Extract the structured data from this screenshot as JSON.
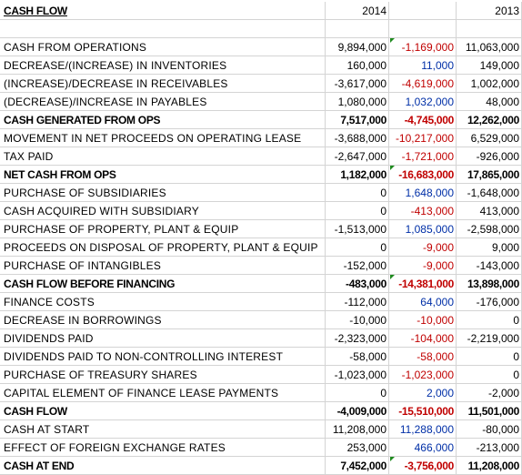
{
  "header": {
    "label": "CASH FLOW",
    "year1": "2014",
    "year2": "2013"
  },
  "rows": [
    {
      "label": "CASH FROM OPERATIONS",
      "v2014": "9,894,000",
      "change": "-1,169,000",
      "change_sign": "neg",
      "v2013": "11,063,000",
      "bold": false,
      "flag": true
    },
    {
      "label": "DECREASE/(INCREASE) IN INVENTORIES",
      "v2014": "160,000",
      "change": "11,000",
      "change_sign": "pos",
      "v2013": "149,000",
      "bold": false,
      "flag": false
    },
    {
      "label": "(INCREASE)/DECREASE IN RECEIVABLES",
      "v2014": "-3,617,000",
      "change": "-4,619,000",
      "change_sign": "neg",
      "v2013": "1,002,000",
      "bold": false,
      "flag": false
    },
    {
      "label": "(DECREASE)/INCREASE IN PAYABLES",
      "v2014": "1,080,000",
      "change": "1,032,000",
      "change_sign": "pos",
      "v2013": "48,000",
      "bold": false,
      "flag": false
    },
    {
      "label": "CASH GENERATED FROM OPS",
      "v2014": "7,517,000",
      "change": "-4,745,000",
      "change_sign": "neg",
      "v2013": "12,262,000",
      "bold": true,
      "flag": false
    },
    {
      "label": "MOVEMENT IN NET PROCEEDS ON OPERATING LEASE",
      "v2014": "-3,688,000",
      "change": "-10,217,000",
      "change_sign": "neg",
      "v2013": "6,529,000",
      "bold": false,
      "flag": false
    },
    {
      "label": "TAX PAID",
      "v2014": "-2,647,000",
      "change": "-1,721,000",
      "change_sign": "neg",
      "v2013": "-926,000",
      "bold": false,
      "flag": false
    },
    {
      "label": "NET CASH FROM OPS",
      "v2014": "1,182,000",
      "change": "-16,683,000",
      "change_sign": "neg",
      "v2013": "17,865,000",
      "bold": true,
      "flag": true
    },
    {
      "label": "PURCHASE OF SUBSIDIARIES",
      "v2014": "0",
      "change": "1,648,000",
      "change_sign": "pos",
      "v2013": "-1,648,000",
      "bold": false,
      "flag": false
    },
    {
      "label": "CASH ACQUIRED WITH SUBSIDIARY",
      "v2014": "0",
      "change": "-413,000",
      "change_sign": "neg",
      "v2013": "413,000",
      "bold": false,
      "flag": false
    },
    {
      "label": "PURCHASE OF PROPERTY, PLANT & EQUIP",
      "v2014": "-1,513,000",
      "change": "1,085,000",
      "change_sign": "pos",
      "v2013": "-2,598,000",
      "bold": false,
      "flag": false
    },
    {
      "label": "PROCEEDS ON DISPOSAL OF PROPERTY, PLANT & EQUIP",
      "v2014": "0",
      "change": "-9,000",
      "change_sign": "neg",
      "v2013": "9,000",
      "bold": false,
      "flag": false
    },
    {
      "label": "PURCHASE OF INTANGIBLES",
      "v2014": "-152,000",
      "change": "-9,000",
      "change_sign": "neg",
      "v2013": "-143,000",
      "bold": false,
      "flag": false
    },
    {
      "label": "CASH FLOW BEFORE FINANCING",
      "v2014": "-483,000",
      "change": "-14,381,000",
      "change_sign": "neg",
      "v2013": "13,898,000",
      "bold": true,
      "flag": true
    },
    {
      "label": "FINANCE COSTS",
      "v2014": "-112,000",
      "change": "64,000",
      "change_sign": "pos",
      "v2013": "-176,000",
      "bold": false,
      "flag": false
    },
    {
      "label": "DECREASE IN BORROWINGS",
      "v2014": "-10,000",
      "change": "-10,000",
      "change_sign": "neg",
      "v2013": "0",
      "bold": false,
      "flag": false
    },
    {
      "label": "DIVIDENDS PAID",
      "v2014": "-2,323,000",
      "change": "-104,000",
      "change_sign": "neg",
      "v2013": "-2,219,000",
      "bold": false,
      "flag": false
    },
    {
      "label": "DIVIDENDS PAID TO NON-CONTROLLING INTEREST",
      "v2014": "-58,000",
      "change": "-58,000",
      "change_sign": "neg",
      "v2013": "0",
      "bold": false,
      "flag": false
    },
    {
      "label": "PURCHASE OF TREASURY SHARES",
      "v2014": "-1,023,000",
      "change": "-1,023,000",
      "change_sign": "neg",
      "v2013": "0",
      "bold": false,
      "flag": false
    },
    {
      "label": "CAPITAL ELEMENT OF FINANCE LEASE PAYMENTS",
      "v2014": "0",
      "change": "2,000",
      "change_sign": "pos",
      "v2013": "-2,000",
      "bold": false,
      "flag": false
    },
    {
      "label": "CASH FLOW",
      "v2014": "-4,009,000",
      "change": "-15,510,000",
      "change_sign": "neg",
      "v2013": "11,501,000",
      "bold": true,
      "flag": false
    },
    {
      "label": "CASH AT START",
      "v2014": "11,208,000",
      "change": "11,288,000",
      "change_sign": "pos",
      "v2013": "-80,000",
      "bold": false,
      "flag": false
    },
    {
      "label": "EFFECT OF FOREIGN EXCHANGE RATES",
      "v2014": "253,000",
      "change": "466,000",
      "change_sign": "pos",
      "v2013": "-213,000",
      "bold": false,
      "flag": false
    },
    {
      "label": "CASH AT END",
      "v2014": "7,452,000",
      "change": "-3,756,000",
      "change_sign": "neg",
      "v2013": "11,208,000",
      "bold": true,
      "flag": true
    }
  ]
}
